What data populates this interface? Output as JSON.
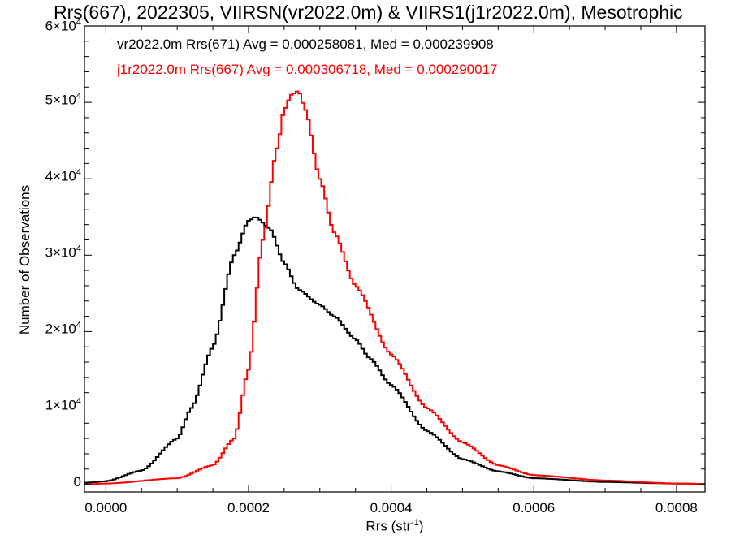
{
  "chart_data": {
    "type": "line",
    "title": "Rrs(667), 2022305, VIIRSN(vr2022.0m) & VIIRS1(j1r2022.0m), Mesotrophic",
    "xlabel_main": "Rrs (str",
    "xlabel_exp": "-1",
    "xlabel_close": ")",
    "ylabel": "Number of Observations",
    "xlim": [
      -3e-05,
      0.00084
    ],
    "ylim": [
      -1000,
      60000
    ],
    "xticks": [
      0.0,
      0.0002,
      0.0004,
      0.0006,
      0.0008
    ],
    "xtick_labels": [
      "0.0000",
      "0.0002",
      "0.0004",
      "0.0006",
      "0.0008"
    ],
    "yticks": [
      0,
      10000,
      20000,
      30000,
      40000,
      50000,
      60000
    ],
    "ytick_labels": [
      {
        "mant": "0",
        "exp": ""
      },
      {
        "mant": "1×10",
        "exp": "4"
      },
      {
        "mant": "2×10",
        "exp": "4"
      },
      {
        "mant": "3×10",
        "exp": "4"
      },
      {
        "mant": "4×10",
        "exp": "4"
      },
      {
        "mant": "5×10",
        "exp": "4"
      },
      {
        "mant": "6×10",
        "exp": "4"
      }
    ],
    "grid": false,
    "legend_position": "top-left",
    "series": [
      {
        "legend": "vr2022.0m Rrs(671) Avg = 0.000258081, Med = 0.000239908",
        "color": "#000000",
        "style": "step",
        "x": [
          -3e-05,
          0.0,
          5e-05,
          0.0001,
          0.00012,
          0.00015,
          0.00018,
          0.0002,
          0.00021,
          0.00023,
          0.00025,
          0.00027,
          0.0003,
          0.00032,
          0.00035,
          0.00037,
          0.0004,
          0.00045,
          0.0005,
          0.00055,
          0.0006,
          0.0007,
          0.0008,
          0.00084
        ],
        "y": [
          200,
          400,
          1800,
          6000,
          10000,
          18000,
          30000,
          34500,
          35000,
          33500,
          29000,
          25500,
          23500,
          22000,
          19000,
          16500,
          13000,
          7000,
          3300,
          1700,
          800,
          300,
          100,
          50
        ]
      },
      {
        "legend": "j1r2022.0m Rrs(667) Avg = 0.000306718, Med = 0.000290017",
        "color": "#ff0000",
        "style": "step",
        "x": [
          -3e-05,
          0.0,
          0.0001,
          0.00015,
          0.00018,
          0.0002,
          0.00022,
          0.00024,
          0.00025,
          0.00026,
          0.00027,
          0.00028,
          0.0003,
          0.00032,
          0.00035,
          0.0004,
          0.00045,
          0.0005,
          0.00055,
          0.0006,
          0.0007,
          0.0008,
          0.00084
        ],
        "y": [
          0,
          100,
          800,
          2500,
          6000,
          15000,
          32000,
          44000,
          49000,
          51000,
          51500,
          49000,
          40000,
          33000,
          26000,
          17000,
          10000,
          5500,
          2500,
          1200,
          500,
          100,
          50
        ]
      }
    ]
  }
}
